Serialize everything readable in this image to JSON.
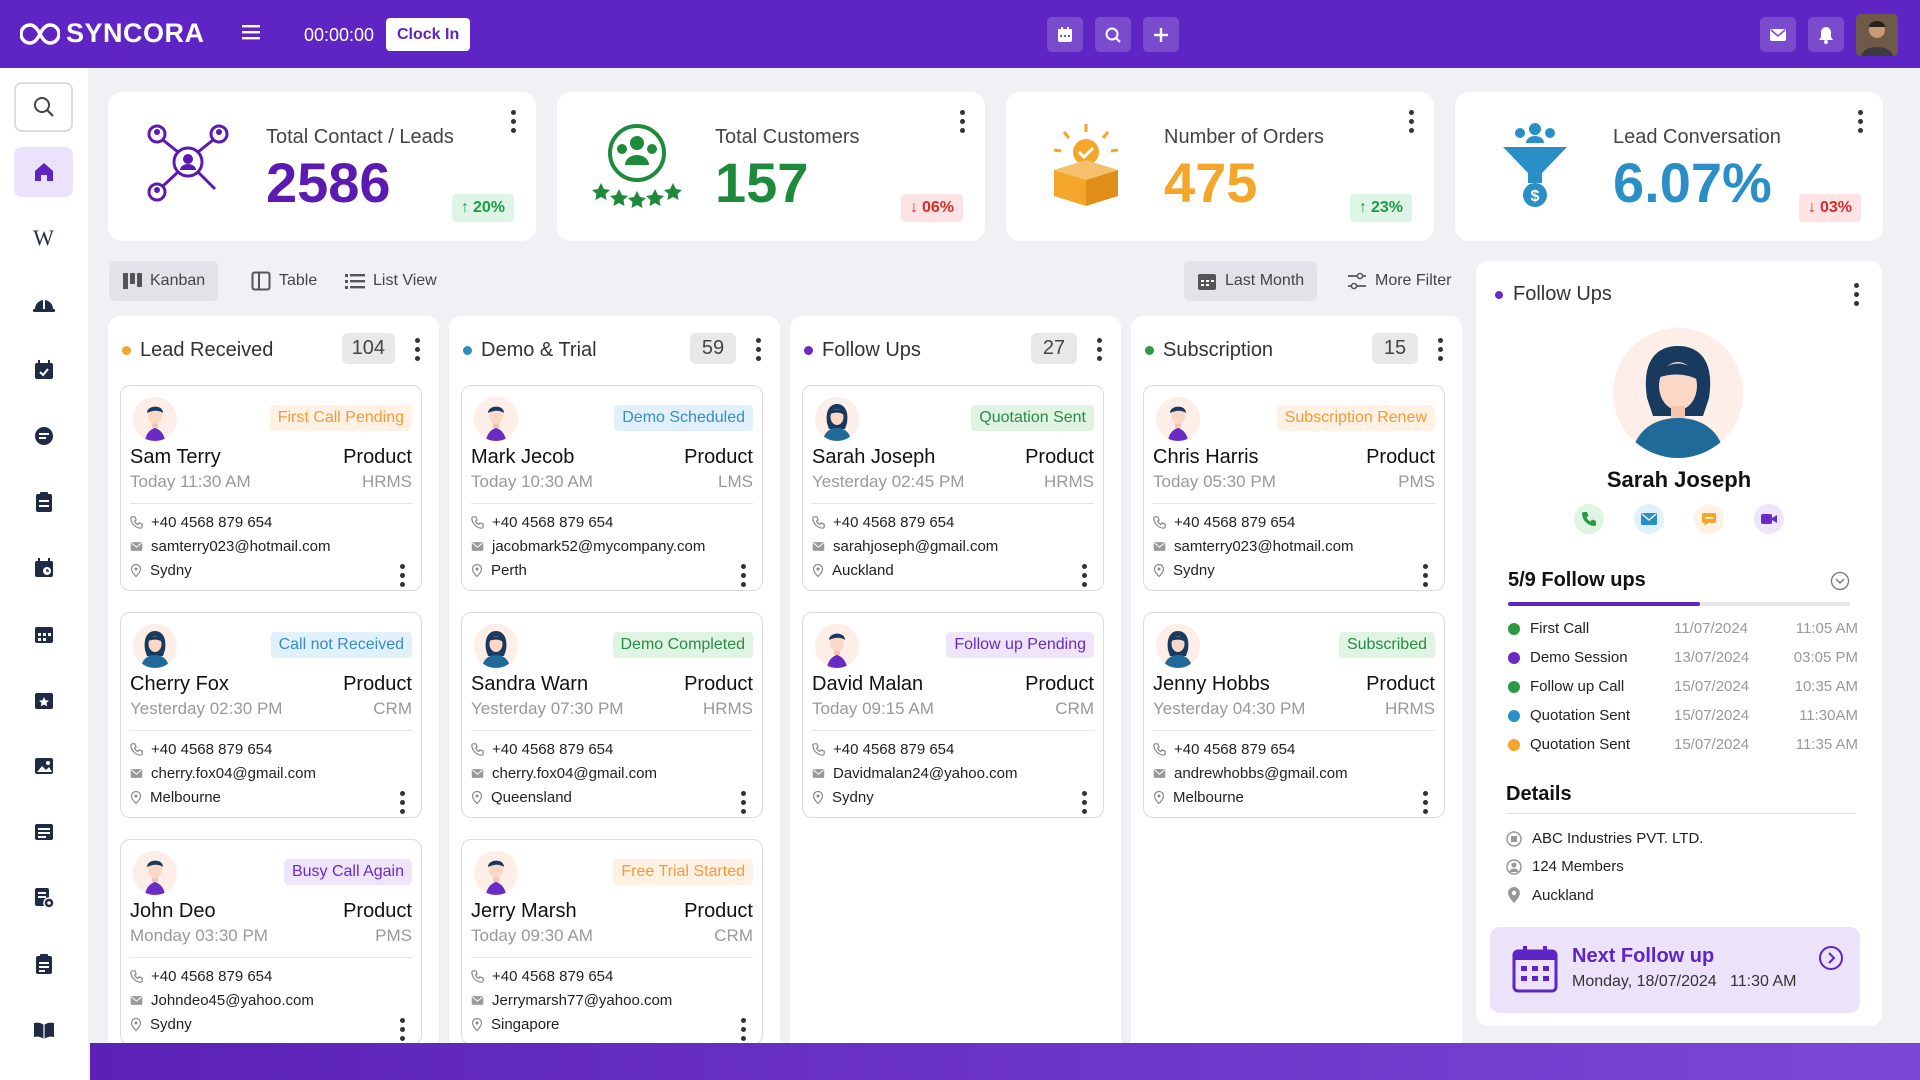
{
  "brand": {
    "name": "SYNCORA",
    "primary": "#5e24c4"
  },
  "topbar": {
    "timer": "00:00:00",
    "clock_in": "Clock In"
  },
  "stats": [
    {
      "title": "Total Contact / Leads",
      "value": "2586",
      "change": "20%",
      "trend": "up",
      "color": "#5b1ab0"
    },
    {
      "title": "Total Customers",
      "value": "157",
      "change": "06%",
      "trend": "down",
      "color": "#1e8a3c"
    },
    {
      "title": "Number of Orders",
      "value": "475",
      "change": "23%",
      "trend": "up",
      "color": "#f4a62a"
    },
    {
      "title": "Lead Conversation",
      "value": "6.07%",
      "change": "03%",
      "trend": "down",
      "color": "#2b8fc7"
    }
  ],
  "views": {
    "kanban": "Kanban",
    "table": "Table",
    "list": "List View",
    "period": "Last Month",
    "filter": "More Filter"
  },
  "columns": [
    {
      "title": "Lead Received",
      "count": "104",
      "dot": "#f4a62a",
      "cards": [
        {
          "tag": "First Call Pending",
          "tag_style": "orange",
          "name": "Sam Terry",
          "product": "Product",
          "time": "Today 11:30 AM",
          "system": "HRMS",
          "phone": "+40 4568 879 654",
          "email": "samterry023@hotmail.com",
          "city": "Sydny",
          "gender": "m"
        },
        {
          "tag": "Call not Received",
          "tag_style": "blue",
          "name": "Cherry Fox",
          "product": "Product",
          "time": "Yesterday 02:30 PM",
          "system": "CRM",
          "phone": "+40 4568 879 654",
          "email": "cherry.fox04@gmail.com",
          "city": "Melbourne",
          "gender": "f"
        },
        {
          "tag": "Busy Call Again",
          "tag_style": "purple",
          "name": "John Deo",
          "product": "Product",
          "time": "Monday 03:30 PM",
          "system": "PMS",
          "phone": "+40 4568 879 654",
          "email": "Johndeo45@yahoo.com",
          "city": "Sydny",
          "gender": "m"
        }
      ]
    },
    {
      "title": "Demo & Trial",
      "count": "59",
      "dot": "#2b8fc7",
      "cards": [
        {
          "tag": "Demo Scheduled",
          "tag_style": "blue",
          "name": "Mark Jecob",
          "product": "Product",
          "time": "Today 10:30 AM",
          "system": "LMS",
          "phone": "+40 4568 879 654",
          "email": "jacobmark52@mycompany.com",
          "city": "Perth",
          "gender": "m"
        },
        {
          "tag": "Demo Completed",
          "tag_style": "green",
          "name": "Sandra Warn",
          "product": "Product",
          "time": "Yesterday 07:30 PM",
          "system": "HRMS",
          "phone": "+40 4568 879 654",
          "email": "cherry.fox04@gmail.com",
          "city": "Queensland",
          "gender": "f"
        },
        {
          "tag": "Free Trial Started",
          "tag_style": "orange",
          "name": "Jerry Marsh",
          "product": "Product",
          "time": "Today 09:30 AM",
          "system": "CRM",
          "phone": "+40 4568 879 654",
          "email": "Jerrymarsh77@yahoo.com",
          "city": "Singapore",
          "gender": "m"
        }
      ]
    },
    {
      "title": "Follow Ups",
      "count": "27",
      "dot": "#6a2bc4",
      "cards": [
        {
          "tag": "Quotation Sent",
          "tag_style": "green",
          "name": "Sarah Joseph",
          "product": "Product",
          "time": "Yesterday 02:45 PM",
          "system": "HRMS",
          "phone": "+40 4568 879 654",
          "email": "sarahjoseph@gmail.com",
          "city": "Auckland",
          "gender": "f"
        },
        {
          "tag": "Follow up Pending",
          "tag_style": "purple",
          "name": "David Malan",
          "product": "Product",
          "time": "Today 09:15 AM",
          "system": "CRM",
          "phone": "+40 4568 879 654",
          "email": "Davidmalan24@yahoo.com",
          "city": "Sydny",
          "gender": "m"
        }
      ]
    },
    {
      "title": "Subscription",
      "count": "15",
      "dot": "#2b9a45",
      "cards": [
        {
          "tag": "Subscription Renew",
          "tag_style": "orange",
          "name": "Chris Harris",
          "product": "Product",
          "time": "Today 05:30 PM",
          "system": "PMS",
          "phone": "+40 4568 879 654",
          "email": "samterry023@hotmail.com",
          "city": "Sydny",
          "gender": "m"
        },
        {
          "tag": "Subscribed",
          "tag_style": "green",
          "name": "Jenny Hobbs",
          "product": "Product",
          "time": "Yesterday 04:30 PM",
          "system": "HRMS",
          "phone": "+40 4568 879 654",
          "email": "andrewhobbs@gmail.com",
          "city": "Melbourne",
          "gender": "f"
        }
      ]
    }
  ],
  "followups": {
    "title": "Follow Ups",
    "person": "Sarah Joseph",
    "progress_label": "5/9 Follow ups",
    "progress": 0.56,
    "items": [
      {
        "label": "First Call",
        "date": "11/07/2024",
        "time": "11:05 AM",
        "icon": "phone-icon",
        "color": "#2b9a45"
      },
      {
        "label": "Demo Session",
        "date": "13/07/2024",
        "time": "03:05 PM",
        "icon": "video-icon",
        "color": "#6a2bc4"
      },
      {
        "label": "Follow up Call",
        "date": "15/07/2024",
        "time": "10:35 AM",
        "icon": "phone-icon",
        "color": "#2b9a45"
      },
      {
        "label": "Quotation Sent",
        "date": "15/07/2024",
        "time": "11:30AM",
        "icon": "mail-icon",
        "color": "#2b8fc7"
      },
      {
        "label": "Quotation Sent",
        "date": "15/07/2024",
        "time": "11:35 AM",
        "icon": "message-icon",
        "color": "#f4a62a"
      }
    ],
    "details_title": "Details",
    "details": {
      "company": "ABC Industries PVT. LTD.",
      "members": "124 Members",
      "location": "Auckland"
    },
    "next": {
      "title": "Next Follow up",
      "datetime": "Monday, 18/07/2024   11:30 AM"
    }
  }
}
